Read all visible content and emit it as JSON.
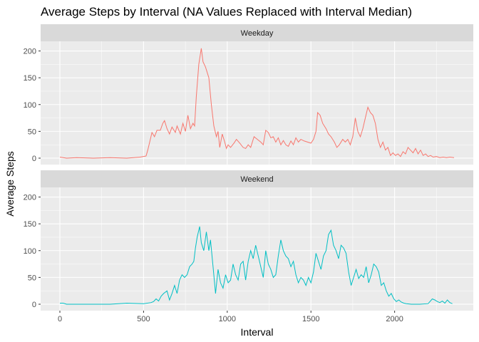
{
  "chart_data": {
    "type": "line",
    "title": "Average Steps by Interval (NA Values Replaced with Interval Median)",
    "xlabel": "Interval",
    "ylabel": "Average Steps",
    "xlim": [
      -115,
      2470
    ],
    "ylim": [
      -12,
      218
    ],
    "x_ticks": [
      0,
      500,
      1000,
      1500,
      2000
    ],
    "y_ticks": [
      0,
      50,
      100,
      150,
      200
    ],
    "grid": true,
    "panel_background": "#ebebeb",
    "strip_background": "#d9d9d9",
    "panels": [
      {
        "label": "Weekday",
        "color": "#f8766d",
        "points": [
          [
            0,
            2
          ],
          [
            20,
            1
          ],
          [
            40,
            0
          ],
          [
            100,
            1
          ],
          [
            200,
            0
          ],
          [
            300,
            1
          ],
          [
            400,
            0
          ],
          [
            480,
            2
          ],
          [
            515,
            4
          ],
          [
            525,
            15
          ],
          [
            550,
            48
          ],
          [
            565,
            40
          ],
          [
            580,
            52
          ],
          [
            600,
            52
          ],
          [
            615,
            65
          ],
          [
            625,
            70
          ],
          [
            640,
            55
          ],
          [
            655,
            45
          ],
          [
            670,
            58
          ],
          [
            690,
            48
          ],
          [
            700,
            60
          ],
          [
            720,
            45
          ],
          [
            735,
            65
          ],
          [
            750,
            50
          ],
          [
            765,
            80
          ],
          [
            780,
            55
          ],
          [
            795,
            65
          ],
          [
            805,
            60
          ],
          [
            815,
            115
          ],
          [
            830,
            175
          ],
          [
            845,
            205
          ],
          [
            855,
            180
          ],
          [
            870,
            170
          ],
          [
            890,
            150
          ],
          [
            905,
            100
          ],
          [
            920,
            60
          ],
          [
            935,
            40
          ],
          [
            945,
            50
          ],
          [
            955,
            20
          ],
          [
            970,
            45
          ],
          [
            985,
            30
          ],
          [
            995,
            18
          ],
          [
            1005,
            25
          ],
          [
            1020,
            20
          ],
          [
            1040,
            28
          ],
          [
            1055,
            35
          ],
          [
            1075,
            28
          ],
          [
            1095,
            20
          ],
          [
            1110,
            18
          ],
          [
            1125,
            25
          ],
          [
            1140,
            20
          ],
          [
            1160,
            40
          ],
          [
            1180,
            35
          ],
          [
            1200,
            30
          ],
          [
            1215,
            25
          ],
          [
            1230,
            52
          ],
          [
            1245,
            48
          ],
          [
            1260,
            38
          ],
          [
            1275,
            40
          ],
          [
            1290,
            30
          ],
          [
            1305,
            38
          ],
          [
            1320,
            25
          ],
          [
            1335,
            33
          ],
          [
            1350,
            25
          ],
          [
            1365,
            22
          ],
          [
            1380,
            32
          ],
          [
            1395,
            25
          ],
          [
            1410,
            38
          ],
          [
            1425,
            30
          ],
          [
            1440,
            35
          ],
          [
            1460,
            32
          ],
          [
            1480,
            30
          ],
          [
            1500,
            28
          ],
          [
            1515,
            35
          ],
          [
            1530,
            50
          ],
          [
            1540,
            85
          ],
          [
            1555,
            80
          ],
          [
            1570,
            65
          ],
          [
            1590,
            55
          ],
          [
            1605,
            45
          ],
          [
            1620,
            40
          ],
          [
            1640,
            30
          ],
          [
            1655,
            20
          ],
          [
            1670,
            25
          ],
          [
            1690,
            35
          ],
          [
            1705,
            30
          ],
          [
            1720,
            35
          ],
          [
            1735,
            25
          ],
          [
            1750,
            40
          ],
          [
            1765,
            75
          ],
          [
            1780,
            50
          ],
          [
            1795,
            40
          ],
          [
            1810,
            55
          ],
          [
            1825,
            75
          ],
          [
            1840,
            95
          ],
          [
            1855,
            85
          ],
          [
            1870,
            80
          ],
          [
            1885,
            65
          ],
          [
            1900,
            35
          ],
          [
            1915,
            20
          ],
          [
            1930,
            30
          ],
          [
            1945,
            15
          ],
          [
            1960,
            20
          ],
          [
            1975,
            5
          ],
          [
            1990,
            10
          ],
          [
            2005,
            5
          ],
          [
            2020,
            8
          ],
          [
            2035,
            3
          ],
          [
            2050,
            12
          ],
          [
            2065,
            8
          ],
          [
            2080,
            20
          ],
          [
            2095,
            15
          ],
          [
            2110,
            10
          ],
          [
            2125,
            18
          ],
          [
            2140,
            8
          ],
          [
            2155,
            15
          ],
          [
            2170,
            5
          ],
          [
            2185,
            8
          ],
          [
            2200,
            3
          ],
          [
            2215,
            5
          ],
          [
            2230,
            2
          ],
          [
            2250,
            3
          ],
          [
            2270,
            1
          ],
          [
            2290,
            2
          ],
          [
            2310,
            1
          ],
          [
            2330,
            2
          ],
          [
            2355,
            1
          ]
        ]
      },
      {
        "label": "Weekend",
        "color": "#00bfc4",
        "points": [
          [
            0,
            2
          ],
          [
            20,
            2
          ],
          [
            40,
            0
          ],
          [
            120,
            0
          ],
          [
            200,
            0
          ],
          [
            300,
            0
          ],
          [
            400,
            2
          ],
          [
            500,
            1
          ],
          [
            545,
            3
          ],
          [
            560,
            5
          ],
          [
            575,
            10
          ],
          [
            590,
            6
          ],
          [
            605,
            15
          ],
          [
            620,
            20
          ],
          [
            640,
            25
          ],
          [
            655,
            8
          ],
          [
            670,
            20
          ],
          [
            685,
            35
          ],
          [
            700,
            20
          ],
          [
            715,
            45
          ],
          [
            730,
            55
          ],
          [
            745,
            50
          ],
          [
            760,
            55
          ],
          [
            775,
            70
          ],
          [
            790,
            75
          ],
          [
            800,
            80
          ],
          [
            810,
            105
          ],
          [
            820,
            125
          ],
          [
            835,
            145
          ],
          [
            845,
            115
          ],
          [
            860,
            100
          ],
          [
            875,
            135
          ],
          [
            890,
            100
          ],
          [
            900,
            120
          ],
          [
            915,
            70
          ],
          [
            930,
            20
          ],
          [
            945,
            65
          ],
          [
            960,
            40
          ],
          [
            975,
            30
          ],
          [
            990,
            55
          ],
          [
            1005,
            40
          ],
          [
            1020,
            45
          ],
          [
            1035,
            75
          ],
          [
            1050,
            55
          ],
          [
            1065,
            45
          ],
          [
            1080,
            75
          ],
          [
            1095,
            80
          ],
          [
            1110,
            45
          ],
          [
            1125,
            80
          ],
          [
            1140,
            100
          ],
          [
            1155,
            85
          ],
          [
            1170,
            110
          ],
          [
            1185,
            90
          ],
          [
            1200,
            70
          ],
          [
            1215,
            50
          ],
          [
            1230,
            100
          ],
          [
            1245,
            75
          ],
          [
            1260,
            65
          ],
          [
            1275,
            50
          ],
          [
            1290,
            55
          ],
          [
            1305,
            90
          ],
          [
            1320,
            120
          ],
          [
            1335,
            100
          ],
          [
            1350,
            90
          ],
          [
            1365,
            85
          ],
          [
            1380,
            70
          ],
          [
            1395,
            80
          ],
          [
            1410,
            55
          ],
          [
            1425,
            40
          ],
          [
            1440,
            50
          ],
          [
            1455,
            45
          ],
          [
            1470,
            35
          ],
          [
            1485,
            50
          ],
          [
            1500,
            40
          ],
          [
            1515,
            60
          ],
          [
            1530,
            95
          ],
          [
            1545,
            80
          ],
          [
            1560,
            65
          ],
          [
            1575,
            90
          ],
          [
            1590,
            100
          ],
          [
            1605,
            130
          ],
          [
            1620,
            138
          ],
          [
            1635,
            110
          ],
          [
            1650,
            100
          ],
          [
            1665,
            85
          ],
          [
            1680,
            110
          ],
          [
            1695,
            105
          ],
          [
            1710,
            95
          ],
          [
            1725,
            60
          ],
          [
            1740,
            35
          ],
          [
            1755,
            50
          ],
          [
            1770,
            65
          ],
          [
            1785,
            48
          ],
          [
            1800,
            55
          ],
          [
            1815,
            50
          ],
          [
            1830,
            70
          ],
          [
            1845,
            40
          ],
          [
            1860,
            55
          ],
          [
            1875,
            75
          ],
          [
            1890,
            70
          ],
          [
            1905,
            60
          ],
          [
            1920,
            35
          ],
          [
            1935,
            40
          ],
          [
            1950,
            25
          ],
          [
            1965,
            15
          ],
          [
            1980,
            20
          ],
          [
            1995,
            10
          ],
          [
            2010,
            5
          ],
          [
            2025,
            8
          ],
          [
            2040,
            4
          ],
          [
            2055,
            2
          ],
          [
            2070,
            1
          ],
          [
            2100,
            0
          ],
          [
            2150,
            0
          ],
          [
            2200,
            1
          ],
          [
            2225,
            10
          ],
          [
            2240,
            8
          ],
          [
            2255,
            5
          ],
          [
            2270,
            3
          ],
          [
            2285,
            6
          ],
          [
            2300,
            2
          ],
          [
            2315,
            8
          ],
          [
            2330,
            3
          ],
          [
            2345,
            1
          ]
        ]
      }
    ]
  }
}
